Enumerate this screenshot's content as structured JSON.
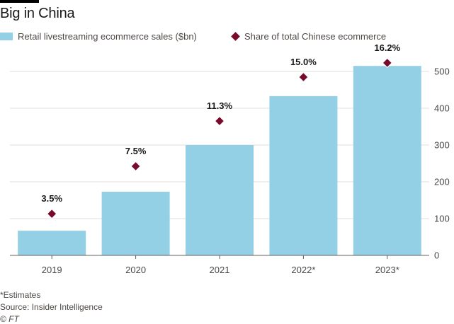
{
  "title": "Big in China",
  "legend": {
    "bars": "Retail livestreaming ecommerce sales ($bn)",
    "markers": "Share of total Chinese ecommerce"
  },
  "colors": {
    "bar": "#93d0e5",
    "marker": "#7a0a2b",
    "grid": "#e3dfdb",
    "text": "#33302e"
  },
  "chart_data": {
    "type": "bar",
    "categories": [
      "2019",
      "2020",
      "2021",
      "2022*",
      "2023*"
    ],
    "series": [
      {
        "name": "Retail livestreaming ecommerce sales ($bn)",
        "type": "bar",
        "axis": "right",
        "values": [
          67,
          173,
          300,
          433,
          515
        ]
      },
      {
        "name": "Share of total Chinese ecommerce",
        "type": "scatter",
        "marker": "diamond",
        "values": [
          3.5,
          7.5,
          11.3,
          15.0,
          16.2
        ],
        "labels": [
          "3.5%",
          "7.5%",
          "11.3%",
          "15.0%",
          "16.2%"
        ]
      }
    ],
    "y_axis": {
      "position": "right",
      "ticks": [
        "0",
        "100",
        "200",
        "300",
        "400",
        "500"
      ],
      "ylim": [
        0,
        500
      ]
    },
    "grid": true,
    "legend_position": "top-left"
  },
  "footer": {
    "note": "*Estimates",
    "source": "Source: Insider Intelligence",
    "credit": "© FT"
  }
}
